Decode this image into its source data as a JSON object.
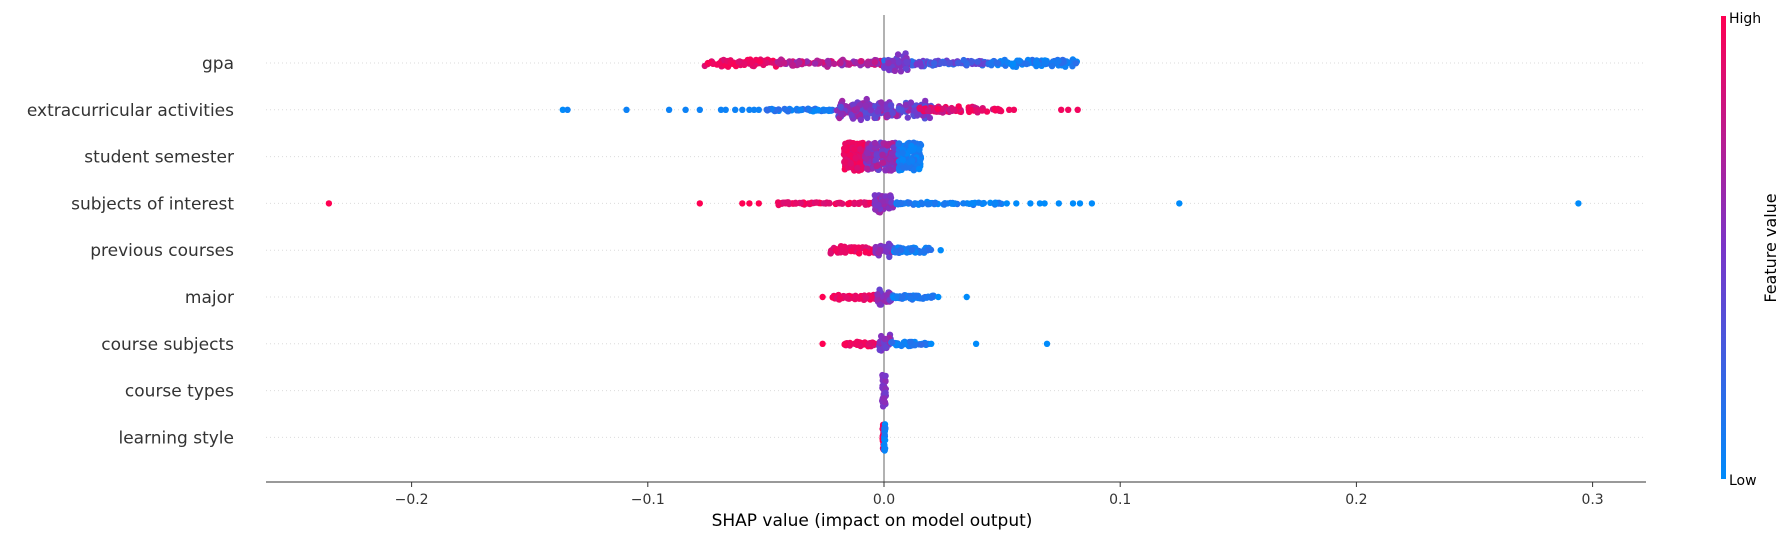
{
  "chart_data": {
    "type": "scatter",
    "subtype": "shap-beeswarm",
    "xlabel": "SHAP value (impact on model output)",
    "xlim": [
      -0.262,
      0.322
    ],
    "x_ticks": [
      -0.2,
      -0.1,
      0.0,
      0.1,
      0.2,
      0.3
    ],
    "x_tick_labels": [
      "−0.2",
      "−0.1",
      "0.0",
      "0.1",
      "0.2",
      "0.3"
    ],
    "colorbar": {
      "title": "Feature value",
      "high_label": "High",
      "low_label": "Low",
      "high_color": "#ff0052",
      "mid_color": "#7a35c8",
      "low_color": "#008bfb"
    },
    "features": [
      {
        "name": "gpa",
        "shape": "wide",
        "clusters": [
          {
            "x": [
              -0.076,
              -0.045
            ],
            "n": 90,
            "spread": 5,
            "fv": [
              0.85,
              1.0
            ]
          },
          {
            "x": [
              -0.045,
              0.0
            ],
            "n": 110,
            "spread": 4,
            "fv": [
              0.55,
              0.9
            ]
          },
          {
            "x": [
              0.0,
              0.045
            ],
            "n": 110,
            "spread": 4,
            "fv": [
              0.15,
              0.5
            ]
          },
          {
            "x": [
              0.045,
              0.082
            ],
            "n": 100,
            "spread": 5,
            "fv": [
              0.0,
              0.2
            ]
          },
          {
            "x": [
              0.0,
              0.01
            ],
            "n": 35,
            "spread": 14,
            "fv": [
              0.4,
              0.6
            ]
          }
        ],
        "outliers": []
      },
      {
        "name": "extracurricular activities",
        "shape": "dense",
        "clusters": [
          {
            "x": [
              -0.05,
              -0.01
            ],
            "n": 80,
            "spread": 2,
            "fv": [
              0.0,
              0.2
            ]
          },
          {
            "x": [
              -0.02,
              0.02
            ],
            "n": 220,
            "spread": 12,
            "fv": [
              0.3,
              0.7
            ]
          },
          {
            "x": [
              0.015,
              0.05
            ],
            "n": 70,
            "spread": 4,
            "fv": [
              0.75,
              1.0
            ]
          }
        ],
        "outliers": [
          {
            "x": -0.136,
            "fv": 0.0
          },
          {
            "x": -0.134,
            "fv": 0.05
          },
          {
            "x": -0.109,
            "fv": 0.05
          },
          {
            "x": -0.091,
            "fv": 0.05
          },
          {
            "x": -0.084,
            "fv": 0.05
          },
          {
            "x": -0.078,
            "fv": 0.05
          },
          {
            "x": -0.069,
            "fv": 0.05
          },
          {
            "x": -0.067,
            "fv": 0.05
          },
          {
            "x": -0.063,
            "fv": 0.05
          },
          {
            "x": -0.06,
            "fv": 0.05
          },
          {
            "x": -0.057,
            "fv": 0.05
          },
          {
            "x": -0.055,
            "fv": 0.05
          },
          {
            "x": -0.053,
            "fv": 0.05
          },
          {
            "x": 0.055,
            "fv": 0.95
          },
          {
            "x": 0.053,
            "fv": 0.95
          },
          {
            "x": 0.049,
            "fv": 0.95
          },
          {
            "x": 0.075,
            "fv": 0.95
          },
          {
            "x": 0.078,
            "fv": 0.95
          },
          {
            "x": 0.082,
            "fv": 0.95
          }
        ]
      },
      {
        "name": "student semester",
        "shape": "block",
        "clusters": [
          {
            "x": [
              -0.017,
              -0.008
            ],
            "n": 120,
            "spread": 14,
            "fv": [
              0.85,
              1.0
            ]
          },
          {
            "x": [
              -0.008,
              0.006
            ],
            "n": 140,
            "spread": 14,
            "fv": [
              0.4,
              0.75
            ]
          },
          {
            "x": [
              0.006,
              0.016
            ],
            "n": 120,
            "spread": 14,
            "fv": [
              0.0,
              0.15
            ]
          }
        ],
        "outliers": []
      },
      {
        "name": "subjects of interest",
        "shape": "dense",
        "clusters": [
          {
            "x": [
              -0.045,
              -0.005
            ],
            "n": 70,
            "spread": 2,
            "fv": [
              0.85,
              1.0
            ]
          },
          {
            "x": [
              -0.004,
              0.004
            ],
            "n": 90,
            "spread": 11,
            "fv": [
              0.45,
              0.65
            ]
          },
          {
            "x": [
              0.005,
              0.05
            ],
            "n": 70,
            "spread": 2,
            "fv": [
              0.0,
              0.15
            ]
          }
        ],
        "outliers": [
          {
            "x": -0.235,
            "fv": 1.0
          },
          {
            "x": -0.078,
            "fv": 1.0
          },
          {
            "x": -0.06,
            "fv": 1.0
          },
          {
            "x": -0.057,
            "fv": 1.0
          },
          {
            "x": -0.053,
            "fv": 1.0
          },
          {
            "x": 0.052,
            "fv": 0.0
          },
          {
            "x": 0.056,
            "fv": 0.0
          },
          {
            "x": 0.062,
            "fv": 0.0
          },
          {
            "x": 0.066,
            "fv": 0.0
          },
          {
            "x": 0.068,
            "fv": 0.0
          },
          {
            "x": 0.074,
            "fv": 0.0
          },
          {
            "x": 0.08,
            "fv": 0.0
          },
          {
            "x": 0.083,
            "fv": 0.0
          },
          {
            "x": 0.088,
            "fv": 0.0
          },
          {
            "x": 0.125,
            "fv": 0.0
          },
          {
            "x": 0.294,
            "fv": 0.0
          }
        ]
      },
      {
        "name": "previous courses",
        "shape": "dense",
        "clusters": [
          {
            "x": [
              -0.023,
              -0.004
            ],
            "n": 70,
            "spread": 5,
            "fv": [
              0.85,
              1.0
            ]
          },
          {
            "x": [
              -0.004,
              0.004
            ],
            "n": 60,
            "spread": 8,
            "fv": [
              0.4,
              0.65
            ]
          },
          {
            "x": [
              0.004,
              0.02
            ],
            "n": 60,
            "spread": 5,
            "fv": [
              0.0,
              0.2
            ]
          }
        ],
        "outliers": [
          {
            "x": 0.024,
            "fv": 0.0
          }
        ]
      },
      {
        "name": "major",
        "shape": "dense",
        "clusters": [
          {
            "x": [
              -0.022,
              -0.003
            ],
            "n": 60,
            "spread": 4,
            "fv": [
              0.85,
              1.0
            ]
          },
          {
            "x": [
              -0.003,
              0.003
            ],
            "n": 40,
            "spread": 10,
            "fv": [
              0.4,
              0.65
            ]
          },
          {
            "x": [
              0.003,
              0.021
            ],
            "n": 50,
            "spread": 3,
            "fv": [
              0.0,
              0.2
            ]
          }
        ],
        "outliers": [
          {
            "x": -0.026,
            "fv": 1.0
          },
          {
            "x": 0.023,
            "fv": 0.0
          },
          {
            "x": 0.035,
            "fv": 0.0
          }
        ]
      },
      {
        "name": "course subjects",
        "shape": "dense",
        "clusters": [
          {
            "x": [
              -0.017,
              -0.002
            ],
            "n": 40,
            "spread": 3,
            "fv": [
              0.85,
              1.0
            ]
          },
          {
            "x": [
              -0.002,
              0.003
            ],
            "n": 30,
            "spread": 10,
            "fv": [
              0.4,
              0.65
            ]
          },
          {
            "x": [
              0.003,
              0.019
            ],
            "n": 40,
            "spread": 3,
            "fv": [
              0.0,
              0.2
            ]
          }
        ],
        "outliers": [
          {
            "x": -0.026,
            "fv": 1.0
          },
          {
            "x": 0.02,
            "fv": 0.0
          },
          {
            "x": 0.039,
            "fv": 0.0
          },
          {
            "x": 0.069,
            "fv": 0.0
          }
        ]
      },
      {
        "name": "course types",
        "shape": "column",
        "clusters": [
          {
            "x": [
              -0.0008,
              0.0008
            ],
            "n": 40,
            "spread": 16,
            "fv": [
              0.45,
              0.6
            ]
          }
        ],
        "outliers": []
      },
      {
        "name": "learning style",
        "shape": "column",
        "clusters": [
          {
            "x": [
              -0.0006,
              -0.0001
            ],
            "n": 20,
            "spread": 14,
            "fv": [
              0.9,
              1.0
            ]
          },
          {
            "x": [
              -0.0001,
              0.0006
            ],
            "n": 20,
            "spread": 14,
            "fv": [
              0.0,
              0.1
            ]
          }
        ],
        "outliers": []
      }
    ]
  }
}
